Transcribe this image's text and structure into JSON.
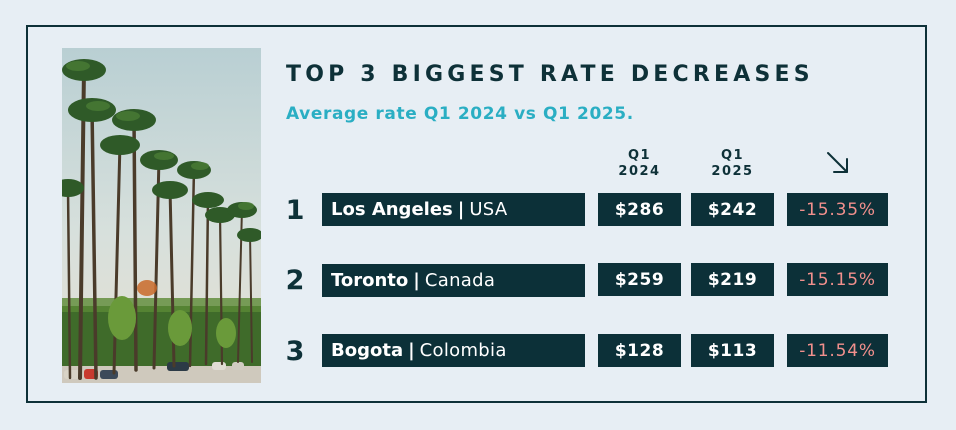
{
  "title": "TOP 3 BIGGEST RATE DECREASES",
  "subtitle": "Average rate Q1 2024 vs Q1 2025.",
  "columns": {
    "q1_2024": {
      "line1": "Q1",
      "line2": "2024"
    },
    "q1_2025": {
      "line1": "Q1",
      "line2": "2025"
    },
    "change_icon": "arrow-down-right-icon"
  },
  "rows": [
    {
      "rank": "1",
      "city": "Los Angeles",
      "separator": "|",
      "country": "USA",
      "q1_2024": "$286",
      "q1_2025": "$242",
      "change": "-15.35%"
    },
    {
      "rank": "2",
      "city": "Toronto",
      "separator": "|",
      "country": "Canada",
      "q1_2024": "$259",
      "q1_2025": "$219",
      "change": "-15.15%"
    },
    {
      "rank": "3",
      "city": "Bogota",
      "separator": "|",
      "country": "Colombia",
      "q1_2024": "$128",
      "q1_2025": "$113",
      "change": "-11.54%"
    }
  ],
  "colors": {
    "title": "#0e3138",
    "subtitle": "#2aaec3",
    "cell_bg": "#0c3038",
    "negative": "#f2908d",
    "background": "#e7eef4"
  }
}
